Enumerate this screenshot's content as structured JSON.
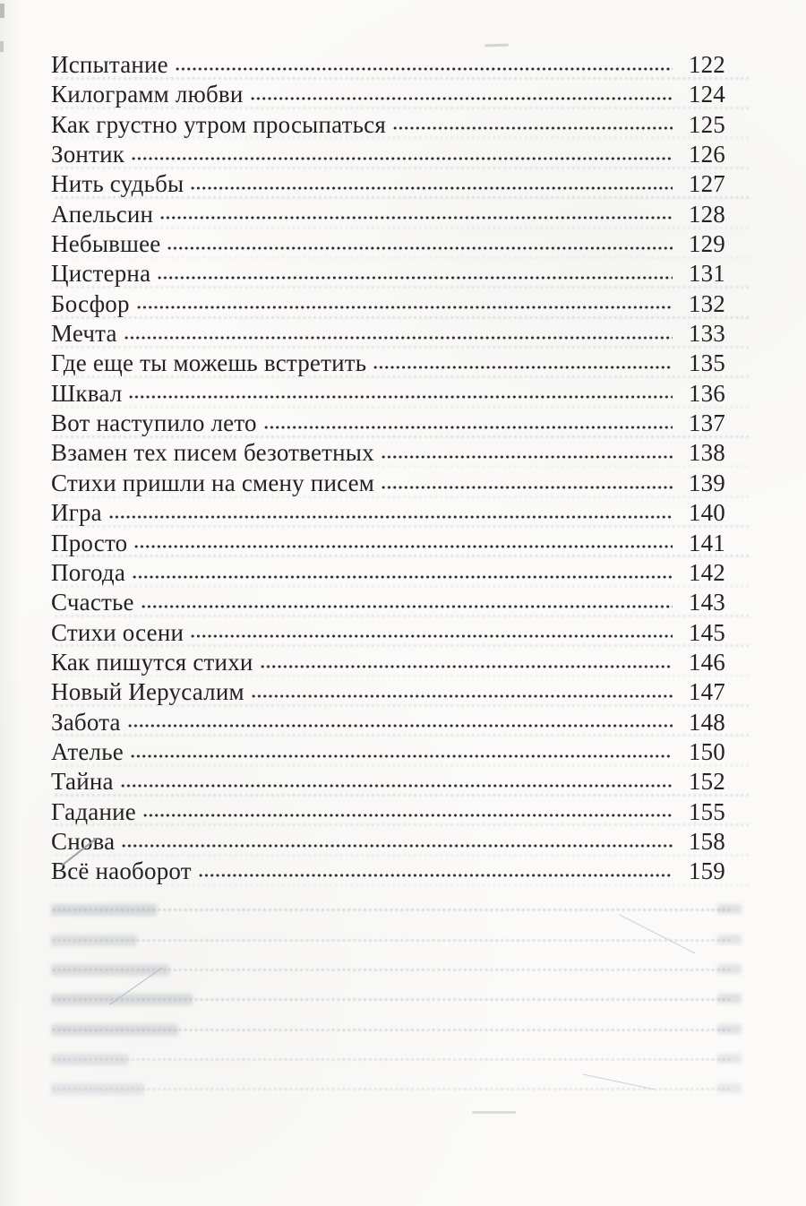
{
  "colors": {
    "paper": "#fbfaf8",
    "ink": "#232122",
    "leader_dot": "#2b292c",
    "ghost_bleed": "#9aa4b0"
  },
  "toc": {
    "entries": [
      {
        "title": "Испытание",
        "page": "122"
      },
      {
        "title": "Килограмм любви",
        "page": "124"
      },
      {
        "title": "Как грустно утром просыпаться",
        "page": "125"
      },
      {
        "title": "Зонтик",
        "page": "126"
      },
      {
        "title": "Нить судьбы",
        "page": "127"
      },
      {
        "title": "Апельсин",
        "page": "128"
      },
      {
        "title": "Небывшее",
        "page": "129"
      },
      {
        "title": "Цистерна",
        "page": "131"
      },
      {
        "title": "Босфор",
        "page": "132"
      },
      {
        "title": "Мечта",
        "page": "133"
      },
      {
        "title": "Где еще ты можешь встретить",
        "page": "135"
      },
      {
        "title": "Шквал",
        "page": "136"
      },
      {
        "title": "Вот наступило лето",
        "page": "137"
      },
      {
        "title": "Взамен тех писем безответных",
        "page": "138"
      },
      {
        "title": "Стихи пришли на смену писем",
        "page": "139"
      },
      {
        "title": "Игра",
        "page": "140"
      },
      {
        "title": "Просто",
        "page": "141"
      },
      {
        "title": "Погода",
        "page": "142"
      },
      {
        "title": "Счастье",
        "page": "143"
      },
      {
        "title": "Стихи осени",
        "page": "145"
      },
      {
        "title": "Как пишутся стихи",
        "page": "146"
      },
      {
        "title": "Новый Иерусалим",
        "page": "147"
      },
      {
        "title": "Забота",
        "page": "148"
      },
      {
        "title": "Ателье",
        "page": "150"
      },
      {
        "title": "Тайна",
        "page": "152"
      },
      {
        "title": "Гадание",
        "page": "155"
      },
      {
        "title": "Снова",
        "page": "158"
      },
      {
        "title": "Всё наоборот",
        "page": "159"
      }
    ]
  },
  "bleed_through": {
    "rows_below_list": 7
  }
}
